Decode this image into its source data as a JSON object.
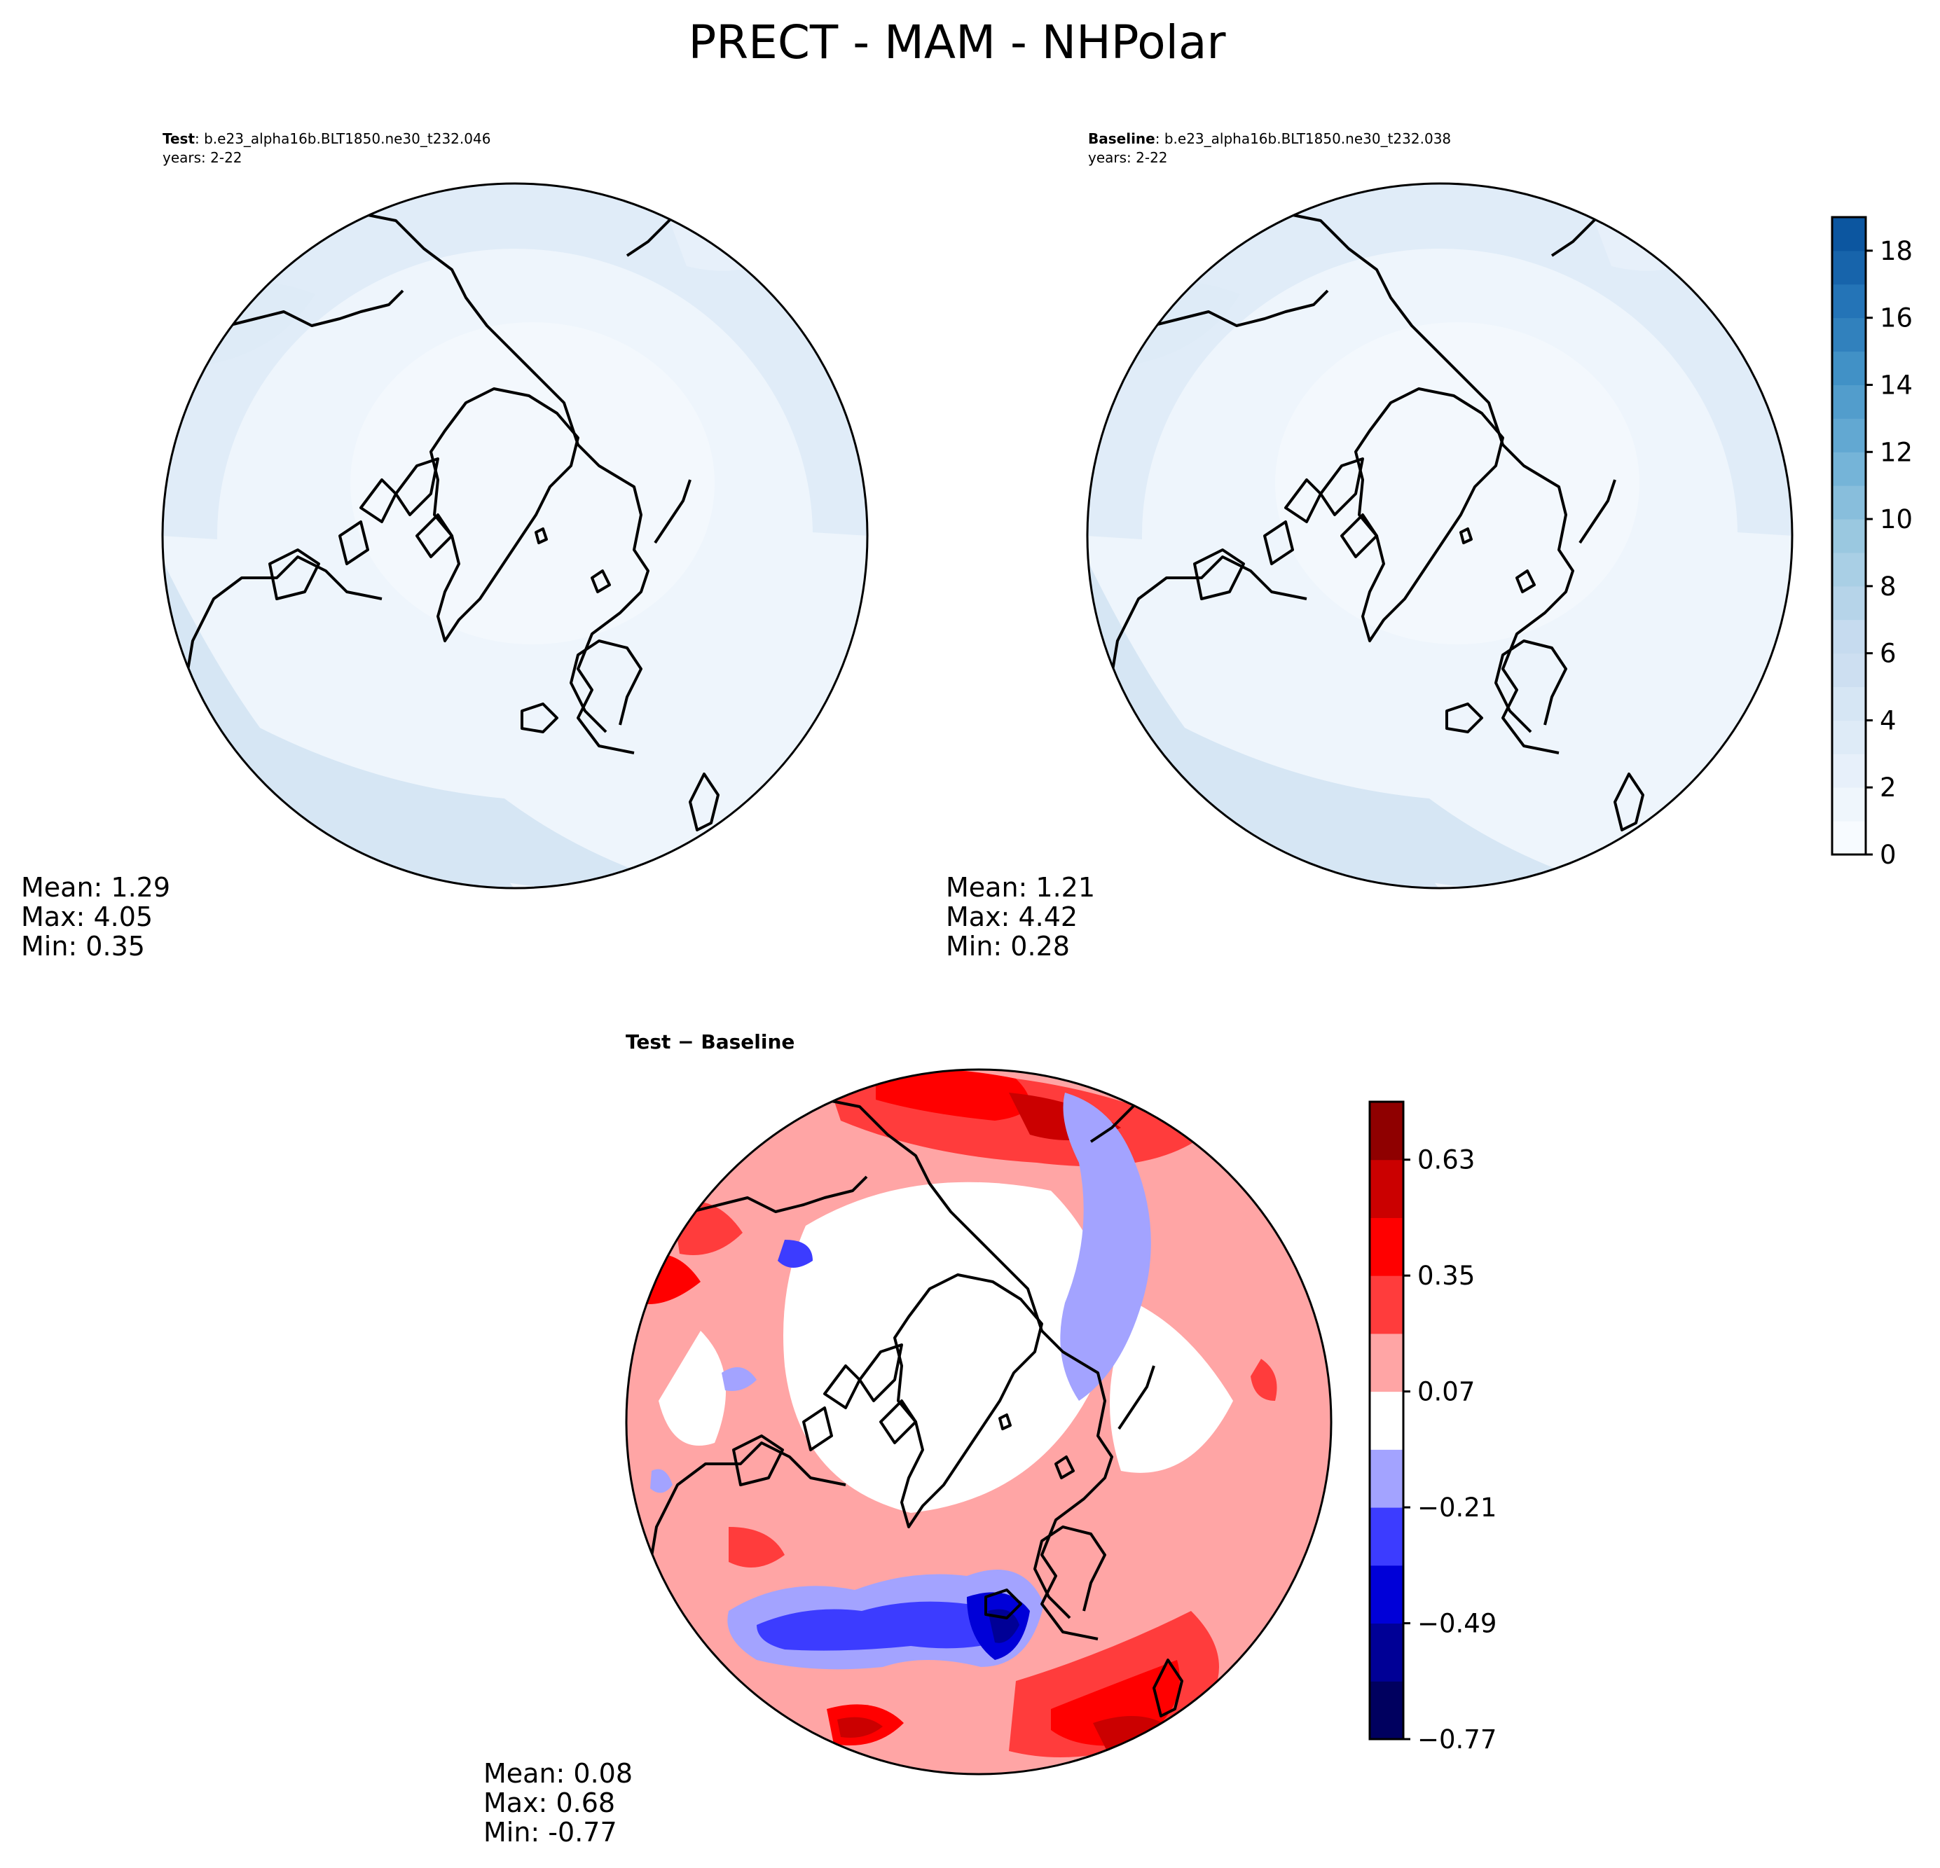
{
  "title": "PRECT - MAM - NHPolar",
  "chart_data": [
    {
      "type": "contour-map",
      "projection": "north-polar-stereographic",
      "panel": "test",
      "label_bold": "Test",
      "label_rest": ": b.e23_alpha16b.BLT1850.ne30_t232.046",
      "years": "years: 2-22",
      "stats": {
        "mean": "Mean:  1.29",
        "max": "Max:  4.05",
        "min": "Min:  0.35"
      },
      "value_range_estimated": [
        0.35,
        4.05
      ]
    },
    {
      "type": "contour-map",
      "projection": "north-polar-stereographic",
      "panel": "baseline",
      "label_bold": "Baseline",
      "label_rest": ": b.e23_alpha16b.BLT1850.ne30_t232.038",
      "years": "years: 2-22",
      "stats": {
        "mean": "Mean:  1.21",
        "max": "Max:  4.42",
        "min": "Min:  0.28"
      },
      "value_range_estimated": [
        0.28,
        4.42
      ]
    },
    {
      "type": "contour-map",
      "projection": "north-polar-stereographic",
      "panel": "difference",
      "label": "Test − Baseline",
      "stats": {
        "mean": "Mean:  0.08",
        "max": "Max:  0.68",
        "min": "Min: -0.77"
      },
      "value_range_estimated": [
        -0.77,
        0.68
      ]
    }
  ],
  "colorbars": {
    "main": {
      "range": [
        0,
        19
      ],
      "tick_values": [
        0,
        2,
        4,
        6,
        8,
        10,
        12,
        14,
        16,
        18
      ],
      "tick_labels": [
        "0",
        "2",
        "4",
        "6",
        "8",
        "10",
        "12",
        "14",
        "16",
        "18"
      ],
      "levels": 19,
      "colors": [
        "#f7fbff",
        "#eff6fc",
        "#e7f0fa",
        "#deebf7",
        "#d6e6f4",
        "#cddff1",
        "#c6dbef",
        "#b6d4e9",
        "#a9cfe5",
        "#9ac8e0",
        "#88bedc",
        "#75b4d8",
        "#62a8d2",
        "#529dcc",
        "#4191c6",
        "#3181bd",
        "#2474b7",
        "#1764ab",
        "#0c56a0"
      ]
    },
    "diff": {
      "range": [
        -0.77,
        0.77
      ],
      "tick_values": [
        -0.77,
        -0.49,
        -0.21,
        0.07,
        0.35,
        0.63
      ],
      "tick_labels": [
        "−0.77",
        "−0.49",
        "−0.21",
        "0.07",
        "0.35",
        "0.63"
      ],
      "levels": 11,
      "colors": [
        "#00005f",
        "#000096",
        "#0000d8",
        "#3c3cff",
        "#a3a3ff",
        "#ffffff",
        "#ffa5a5",
        "#ff3c3c",
        "#ff0000",
        "#cb0000",
        "#8f0000"
      ]
    }
  },
  "colors": {
    "ocean_background": "#eef5fc",
    "coastline": "#000000"
  }
}
